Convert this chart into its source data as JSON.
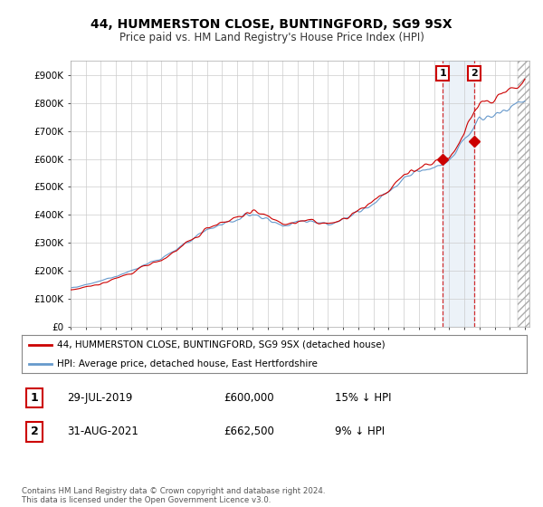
{
  "title": "44, HUMMERSTON CLOSE, BUNTINGFORD, SG9 9SX",
  "subtitle": "Price paid vs. HM Land Registry's House Price Index (HPI)",
  "legend_line1": "44, HUMMERSTON CLOSE, BUNTINGFORD, SG9 9SX (detached house)",
  "legend_line2": "HPI: Average price, detached house, East Hertfordshire",
  "footer": "Contains HM Land Registry data © Crown copyright and database right 2024.\nThis data is licensed under the Open Government Licence v3.0.",
  "sale1_label": "1",
  "sale1_date": "29-JUL-2019",
  "sale1_price": "£600,000",
  "sale1_hpi": "15% ↓ HPI",
  "sale2_label": "2",
  "sale2_date": "31-AUG-2021",
  "sale2_price": "£662,500",
  "sale2_hpi": "9% ↓ HPI",
  "sale1_year": 2019.58,
  "sale1_value": 600000,
  "sale2_year": 2021.67,
  "sale2_value": 662500,
  "hpi_color": "#6699cc",
  "price_color": "#cc0000",
  "sale_marker_color": "#cc0000",
  "ylim": [
    0,
    950000
  ],
  "yticks": [
    0,
    100000,
    200000,
    300000,
    400000,
    500000,
    600000,
    700000,
    800000,
    900000
  ],
  "ytick_labels": [
    "£0",
    "£100K",
    "£200K",
    "£300K",
    "£400K",
    "£500K",
    "£600K",
    "£700K",
    "£800K",
    "£900K"
  ],
  "background_color": "#ffffff",
  "plot_bg_color": "#ffffff",
  "grid_color": "#cccccc",
  "xmin": 1995.0,
  "xmax": 2025.3
}
